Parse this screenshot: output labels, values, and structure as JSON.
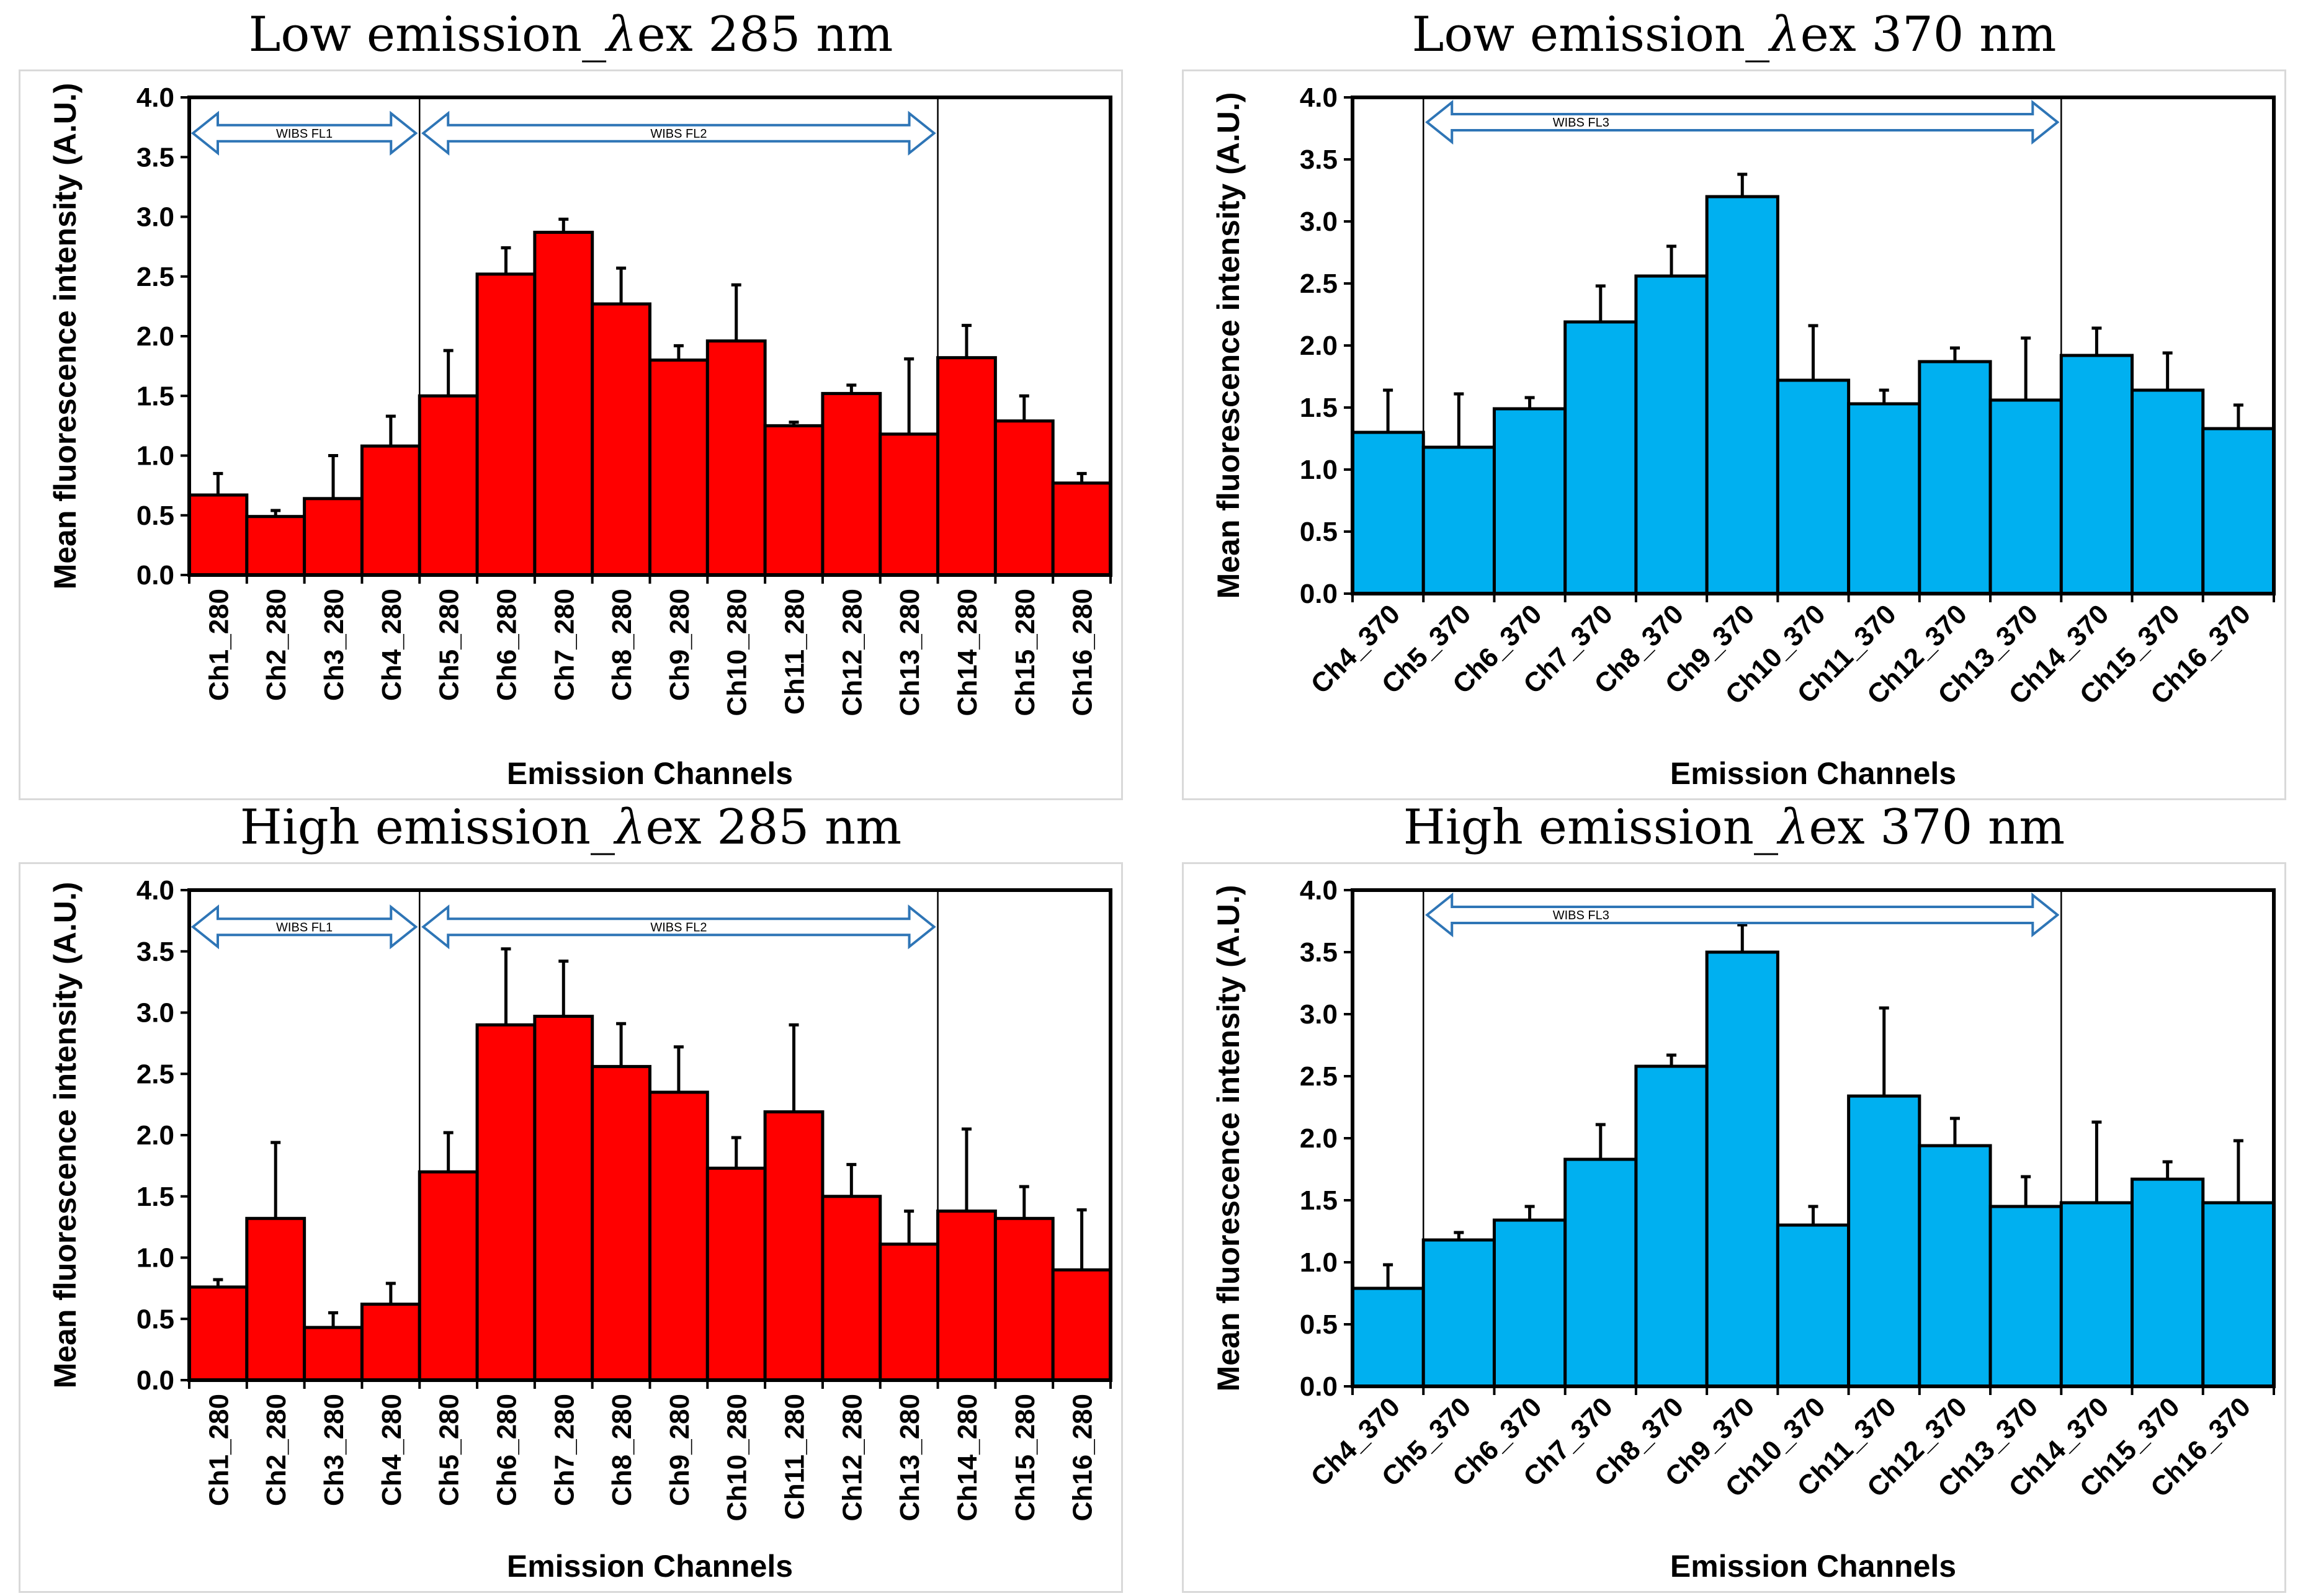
{
  "colors": {
    "red_series": "#ff0000",
    "blue_series": "#00b0f0",
    "arrow": "#2e75b6",
    "axis": "#000000"
  },
  "chart_data": [
    {
      "type": "bar",
      "title_prefix": "Low emission_",
      "title_lambda": "λ",
      "title_suffix": "ex 285 nm",
      "categories": [
        "Ch1_280",
        "Ch2_280",
        "Ch3_280",
        "Ch4_280",
        "Ch5_280",
        "Ch6_280",
        "Ch7_280",
        "Ch8_280",
        "Ch9_280",
        "Ch10_280",
        "Ch11_280",
        "Ch12_280",
        "Ch13_280",
        "Ch14_280",
        "Ch15_280",
        "Ch16_280"
      ],
      "values": [
        0.67,
        0.49,
        0.64,
        1.08,
        1.5,
        2.52,
        2.87,
        2.27,
        1.8,
        1.96,
        1.25,
        1.52,
        1.18,
        1.82,
        1.29,
        0.77
      ],
      "errors": [
        0.18,
        0.05,
        0.36,
        0.25,
        0.38,
        0.22,
        0.11,
        0.3,
        0.12,
        0.47,
        0.03,
        0.07,
        0.63,
        0.27,
        0.21,
        0.08
      ],
      "color": "#ff0000",
      "ylabel": "Mean fluorescence intensity (A.U.)",
      "xlabel": "Emission Channels",
      "ylim": [
        0,
        4.0
      ],
      "yticks": [
        "0.0",
        "0.5",
        "1.0",
        "1.5",
        "2.0",
        "2.5",
        "3.0",
        "3.5",
        "4.0"
      ],
      "xtick_rotation": 90,
      "dividers_after_index": [
        3,
        12
      ],
      "annotations": [
        {
          "label": "WIBS FL1",
          "from": 0,
          "to": 4
        },
        {
          "label": "WIBS FL2",
          "from": 4,
          "to": 13
        }
      ],
      "arrow_y": 3.7
    },
    {
      "type": "bar",
      "title_prefix": "Low emission_",
      "title_lambda": "λ",
      "title_suffix": "ex 370 nm",
      "categories": [
        "Ch4_370",
        "Ch5_370",
        "Ch6_370",
        "Ch7_370",
        "Ch8_370",
        "Ch9_370",
        "Ch10_370",
        "Ch11_370",
        "Ch12_370",
        "Ch13_370",
        "Ch14_370",
        "Ch15_370",
        "Ch16_370"
      ],
      "values": [
        1.3,
        1.18,
        1.49,
        2.19,
        2.56,
        3.2,
        1.72,
        1.53,
        1.87,
        1.56,
        1.92,
        1.64,
        1.33
      ],
      "errors": [
        0.34,
        0.43,
        0.09,
        0.29,
        0.24,
        0.18,
        0.44,
        0.11,
        0.11,
        0.5,
        0.22,
        0.3,
        0.19
      ],
      "color": "#00b0f0",
      "ylabel": "Mean fluorescence intensity (A.U.)",
      "xlabel": "Emission Channels",
      "ylim": [
        0,
        4.0
      ],
      "yticks": [
        "0.0",
        "0.5",
        "1.0",
        "1.5",
        "2.0",
        "2.5",
        "3.0",
        "3.5",
        "4.0"
      ],
      "xtick_rotation": 45,
      "dividers_after_index": [
        0,
        9
      ],
      "annotations": [
        {
          "label": "WIBS FL3",
          "from": 1,
          "to": 10
        }
      ],
      "arrow_y": 3.8
    },
    {
      "type": "bar",
      "title_prefix": "High emission_",
      "title_lambda": "λ",
      "title_suffix": "ex 285 nm",
      "categories": [
        "Ch1_280",
        "Ch2_280",
        "Ch3_280",
        "Ch4_280",
        "Ch5_280",
        "Ch6_280",
        "Ch7_280",
        "Ch8_280",
        "Ch9_280",
        "Ch10_280",
        "Ch11_280",
        "Ch12_280",
        "Ch13_280",
        "Ch14_280",
        "Ch15_280",
        "Ch16_280"
      ],
      "values": [
        0.76,
        1.32,
        0.43,
        0.62,
        1.7,
        2.9,
        2.97,
        2.56,
        2.35,
        1.73,
        2.19,
        1.5,
        1.11,
        1.38,
        1.32,
        0.9
      ],
      "errors": [
        0.06,
        0.62,
        0.12,
        0.17,
        0.32,
        0.62,
        0.45,
        0.35,
        0.37,
        0.25,
        0.71,
        0.26,
        0.27,
        0.67,
        0.26,
        0.49
      ],
      "color": "#ff0000",
      "ylabel": "Mean fluorescence intensity (A.U.)",
      "xlabel": "Emission Channels",
      "ylim": [
        0,
        4.0
      ],
      "yticks": [
        "0.0",
        "0.5",
        "1.0",
        "1.5",
        "2.0",
        "2.5",
        "3.0",
        "3.5",
        "4.0"
      ],
      "xtick_rotation": 90,
      "dividers_after_index": [
        3,
        12
      ],
      "annotations": [
        {
          "label": "WIBS FL1",
          "from": 0,
          "to": 4
        },
        {
          "label": "WIBS FL2",
          "from": 4,
          "to": 13
        }
      ],
      "arrow_y": 3.7
    },
    {
      "type": "bar",
      "title_prefix": "High emission_",
      "title_lambda": "λ",
      "title_suffix": "ex 370 nm",
      "categories": [
        "Ch4_370",
        "Ch5_370",
        "Ch6_370",
        "Ch7_370",
        "Ch8_370",
        "Ch9_370",
        "Ch10_370",
        "Ch11_370",
        "Ch12_370",
        "Ch13_370",
        "Ch14_370",
        "Ch15_370",
        "Ch16_370"
      ],
      "values": [
        0.79,
        1.18,
        1.34,
        1.83,
        2.58,
        3.5,
        1.3,
        2.34,
        1.94,
        1.45,
        1.48,
        1.67,
        1.48
      ],
      "errors": [
        0.19,
        0.06,
        0.11,
        0.28,
        0.09,
        0.22,
        0.15,
        0.71,
        0.22,
        0.24,
        0.65,
        0.14,
        0.5
      ],
      "color": "#00b0f0",
      "ylabel": "Mean fluorescence intensity (A.U.)",
      "xlabel": "Emission Channels",
      "ylim": [
        0,
        4.0
      ],
      "yticks": [
        "0.0",
        "0.5",
        "1.0",
        "1.5",
        "2.0",
        "2.5",
        "3.0",
        "3.5",
        "4.0"
      ],
      "xtick_rotation": 45,
      "dividers_after_index": [
        0,
        9
      ],
      "annotations": [
        {
          "label": "WIBS FL3",
          "from": 1,
          "to": 10
        }
      ],
      "arrow_y": 3.8
    }
  ]
}
